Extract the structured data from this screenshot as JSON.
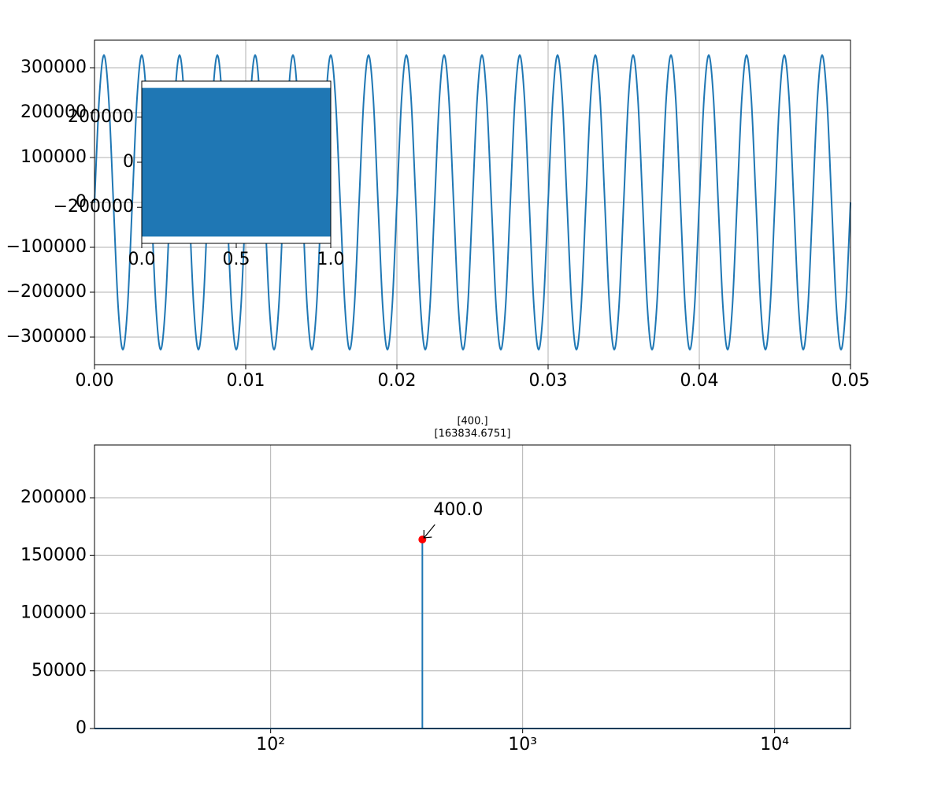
{
  "chart_data": [
    {
      "type": "line",
      "color": "#1f77b4",
      "grid": true,
      "x": [
        0,
        0.0003125,
        0.000625,
        0.0009375,
        0.00125,
        0.0015625,
        0.001875,
        0.0021875,
        0.0025,
        0.0028125,
        0.003125,
        0.0034375,
        0.00375,
        0.0040625,
        0.004375,
        0.0046875,
        0.005,
        0.0053125,
        0.005625,
        0.0059375,
        0.00625,
        0.0065625,
        0.006875,
        0.0071875,
        0.0075,
        0.0078125,
        0.008125,
        0.0084375,
        0.00875,
        0.0090625,
        0.009375,
        0.0096875,
        0.01,
        0.0103125,
        0.010625,
        0.0109375,
        0.01125,
        0.0115625,
        0.011875,
        0.0121875,
        0.0125,
        0.0128125,
        0.013125,
        0.0134375,
        0.01375,
        0.0140625,
        0.014375,
        0.0146875,
        0.015,
        0.0153125,
        0.015625,
        0.0159375,
        0.01625,
        0.0165625,
        0.016875,
        0.0171875,
        0.0175,
        0.0178125,
        0.018125,
        0.0184375,
        0.01875,
        0.0190625,
        0.019375,
        0.0196875,
        0.02,
        0.0203125,
        0.020625,
        0.0209375,
        0.02125,
        0.0215625,
        0.021875,
        0.0221875,
        0.0225,
        0.0228125,
        0.023125,
        0.0234375,
        0.02375,
        0.0240625,
        0.024375,
        0.0246875,
        0.025,
        0.0253125,
        0.025625,
        0.0259375,
        0.02625,
        0.0265625,
        0.026875,
        0.0271875,
        0.0275,
        0.0278125,
        0.028125,
        0.0284375,
        0.02875,
        0.0290625,
        0.029375,
        0.0296875,
        0.03,
        0.0303125,
        0.030625,
        0.0309375,
        0.03125,
        0.0315625,
        0.031875,
        0.0321875,
        0.0325,
        0.0328125,
        0.033125,
        0.0334375,
        0.03375,
        0.0340625,
        0.034375,
        0.0346875,
        0.035,
        0.0353125,
        0.035625,
        0.0359375,
        0.03625,
        0.0365625,
        0.036875,
        0.0371875,
        0.0375,
        0.0378125,
        0.038125,
        0.0384375,
        0.03875,
        0.0390625,
        0.039375,
        0.0396875,
        0.04,
        0.0403125,
        0.040625,
        0.0409375,
        0.04125,
        0.0415625,
        0.041875,
        0.0421875,
        0.0425,
        0.0428125,
        0.043125,
        0.0434375,
        0.04375,
        0.0440625,
        0.044375,
        0.0446875,
        0.045,
        0.0453125,
        0.045625,
        0.0459375,
        0.04625,
        0.0465625,
        0.046875,
        0.0471875,
        0.0475,
        0.0478125,
        0.048125,
        0.0484375,
        0.04875,
        0.0490625,
        0.049375,
        0.0496875,
        0.05
      ],
      "values": [
        0,
        231931,
        328000,
        231931,
        0,
        -231931,
        -328000,
        -231931,
        0,
        231931,
        328000,
        231931,
        0,
        -231931,
        -328000,
        -231931,
        0,
        231931,
        328000,
        231931,
        0,
        -231931,
        -328000,
        -231931,
        0,
        231931,
        328000,
        231931,
        0,
        -231931,
        -328000,
        -231931,
        0,
        231931,
        328000,
        231931,
        0,
        -231931,
        -328000,
        -231931,
        0,
        231931,
        328000,
        231931,
        0,
        -231931,
        -328000,
        -231931,
        0,
        231931,
        328000,
        231931,
        0,
        -231931,
        -328000,
        -231931,
        0,
        231931,
        328000,
        231931,
        0,
        -231931,
        -328000,
        -231931,
        0,
        231931,
        328000,
        231931,
        0,
        -231931,
        -328000,
        -231931,
        0,
        231931,
        328000,
        231931,
        0,
        -231931,
        -328000,
        -231931,
        0,
        231931,
        328000,
        231931,
        0,
        -231931,
        -328000,
        -231931,
        0,
        231931,
        328000,
        231931,
        0,
        -231931,
        -328000,
        -231931,
        0,
        231931,
        328000,
        231931,
        0,
        -231931,
        -328000,
        -231931,
        0,
        231931,
        328000,
        231931,
        0,
        -231931,
        -328000,
        -231931,
        0,
        231931,
        328000,
        231931,
        0,
        -231931,
        -328000,
        -231931,
        0,
        231931,
        328000,
        231931,
        0,
        -231931,
        -328000,
        -231931,
        0,
        231931,
        328000,
        231931,
        0,
        -231931,
        -328000,
        -231931,
        0,
        231931,
        328000,
        231931,
        0,
        -231931,
        -328000,
        -231931,
        0,
        231931,
        328000,
        231931,
        0,
        -231931,
        -328000,
        -231931,
        0,
        231931,
        328000,
        231931,
        0,
        -231931,
        -328000,
        -231931,
        0
      ],
      "xlim": [
        0,
        0.05
      ],
      "ylim": [
        -361400,
        361400
      ],
      "xticks": [
        {
          "value": 0,
          "label": "0.00"
        },
        {
          "value": 0.01,
          "label": "0.01"
        },
        {
          "value": 0.02,
          "label": "0.02"
        },
        {
          "value": 0.03,
          "label": "0.03"
        },
        {
          "value": 0.04,
          "label": "0.04"
        },
        {
          "value": 0.05,
          "label": "0.05"
        }
      ],
      "yticks": [
        {
          "value": -300000,
          "label": "−300000"
        },
        {
          "value": -200000,
          "label": "−200000"
        },
        {
          "value": -100000,
          "label": "−100000"
        },
        0,
        100000,
        200000,
        300000
      ]
    },
    {
      "type": "band",
      "color": "#1f77b4",
      "grid": false,
      "x": [
        0,
        1
      ],
      "upper": [
        328000,
        328000
      ],
      "lower": [
        -328000,
        -328000
      ],
      "xlim": [
        0,
        1
      ],
      "ylim": [
        -360000,
        360000
      ],
      "xticks": [
        {
          "value": 0,
          "label": "0.0"
        },
        {
          "value": 0.5,
          "label": "0.5"
        },
        {
          "value": 1,
          "label": "1.0"
        }
      ],
      "yticks": [
        {
          "value": -200000,
          "label": "−200000"
        },
        0,
        200000
      ]
    },
    {
      "type": "line",
      "color": "#1f77b4",
      "grid": true,
      "xlog": true,
      "title": "[400.]",
      "subtitle": "[163834.6751]",
      "x": [
        20,
        400,
        400,
        400,
        20000
      ],
      "values": [
        0,
        0,
        163834.6751,
        0,
        0
      ],
      "peak": {
        "x": 400,
        "y": 163834.6751,
        "color": "#ff0000"
      },
      "annotation": "400.0",
      "xlim": [
        20,
        20000
      ],
      "ylim": [
        0,
        245752
      ],
      "xticks": [
        {
          "value": 100,
          "label": "10²"
        },
        {
          "value": 1000,
          "label": "10³"
        },
        {
          "value": 10000,
          "label": "10⁴"
        }
      ],
      "yticks": [
        0,
        50000,
        100000,
        150000,
        200000
      ]
    }
  ]
}
